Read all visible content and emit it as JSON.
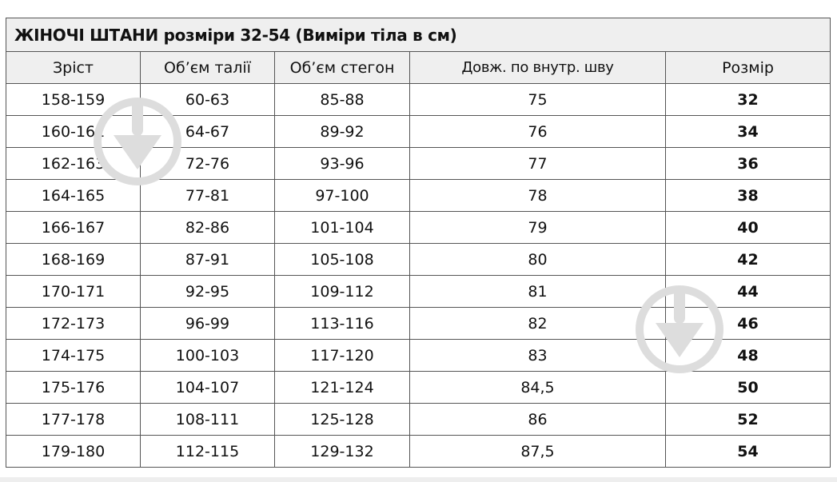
{
  "title": "ЖІНОЧІ ШТАНИ  розміри 32-54 (Виміри тіла в см)",
  "columns": [
    "Зріст",
    "Об’єм талії",
    "Об’єм стегон",
    "Довж. по внутр. шву",
    "Розмір"
  ],
  "rows": [
    [
      "158-159",
      "60-63",
      "85-88",
      "75",
      "32"
    ],
    [
      "160-161",
      "64-67",
      "89-92",
      "76",
      "34"
    ],
    [
      "162-163",
      "72-76",
      "93-96",
      "77",
      "36"
    ],
    [
      "164-165",
      "77-81",
      "97-100",
      "78",
      "38"
    ],
    [
      "166-167",
      "82-86",
      "101-104",
      "79",
      "40"
    ],
    [
      "168-169",
      "87-91",
      "105-108",
      "80",
      "42"
    ],
    [
      "170-171",
      "92-95",
      "109-112",
      "81",
      "44"
    ],
    [
      "172-173",
      "96-99",
      "113-116",
      "82",
      "46"
    ],
    [
      "174-175",
      "100-103",
      "117-120",
      "83",
      "48"
    ],
    [
      "175-176",
      "104-107",
      "121-124",
      "84,5",
      "50"
    ],
    [
      "177-178",
      "108-111",
      "125-128",
      "86",
      "52"
    ],
    [
      "179-180",
      "112-115",
      "129-132",
      "87,5",
      "54"
    ]
  ],
  "watermark_icon": "download-arrow-circle-icon"
}
